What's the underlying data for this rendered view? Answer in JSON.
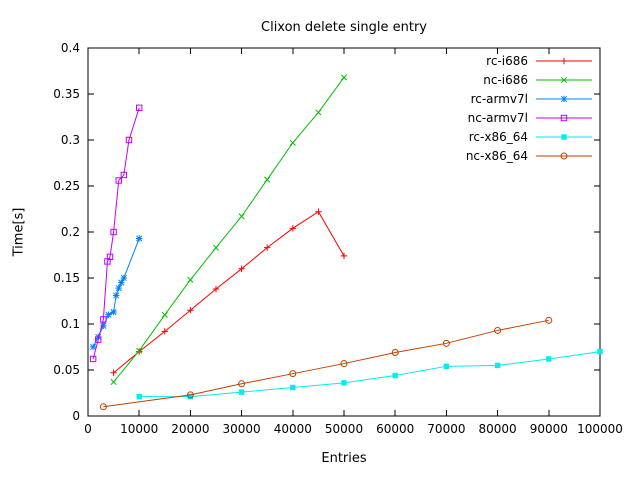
{
  "window": {
    "title": "Clixon delete single entry"
  },
  "chart_data": {
    "type": "line",
    "title": "Clixon delete single entry",
    "xlabel": "Entries",
    "ylabel": "Time[s]",
    "xlim": [
      0,
      100000
    ],
    "ylim": [
      0,
      0.4
    ],
    "xticks": [
      0,
      10000,
      20000,
      30000,
      40000,
      50000,
      60000,
      70000,
      80000,
      90000,
      100000
    ],
    "yticks": [
      0,
      0.05,
      0.1,
      0.15,
      0.2,
      0.25,
      0.3,
      0.35,
      0.4
    ],
    "grid": false,
    "legend_position": "top-right-inside",
    "axis_color": "#000000",
    "background_color": "#ffffff",
    "series": [
      {
        "name": "rc-i686",
        "color": "#ff0000",
        "marker": "plus",
        "x": [
          5000,
          10000,
          15000,
          20000,
          25000,
          30000,
          35000,
          40000,
          45000,
          50000
        ],
        "y": [
          0.047,
          0.07,
          0.092,
          0.115,
          0.138,
          0.16,
          0.183,
          0.204,
          0.222,
          0.174
        ]
      },
      {
        "name": "nc-i686",
        "color": "#00c000",
        "marker": "times",
        "x": [
          5000,
          10000,
          15000,
          20000,
          25000,
          30000,
          35000,
          40000,
          45000,
          50000
        ],
        "y": [
          0.037,
          0.071,
          0.11,
          0.148,
          0.183,
          0.217,
          0.257,
          0.297,
          0.33,
          0.368
        ]
      },
      {
        "name": "rc-armv7l",
        "color": "#0080ff",
        "marker": "asterisk",
        "x": [
          1000,
          2000,
          3000,
          4000,
          5000,
          5500,
          6000,
          6500,
          7000,
          10000
        ],
        "y": [
          0.075,
          0.086,
          0.098,
          0.11,
          0.113,
          0.131,
          0.139,
          0.145,
          0.15,
          0.193
        ]
      },
      {
        "name": "nc-armv7l",
        "color": "#c000ff",
        "marker": "square-open",
        "x": [
          1000,
          2000,
          3000,
          3800,
          4300,
          5000,
          6000,
          7000,
          8000,
          10000
        ],
        "y": [
          0.062,
          0.083,
          0.105,
          0.168,
          0.173,
          0.2,
          0.256,
          0.262,
          0.3,
          0.335
        ]
      },
      {
        "name": "rc-x86_64",
        "color": "#00eeee",
        "marker": "square-filled",
        "x": [
          10000,
          20000,
          30000,
          40000,
          50000,
          60000,
          70000,
          80000,
          90000,
          100000
        ],
        "y": [
          0.021,
          0.021,
          0.026,
          0.031,
          0.036,
          0.044,
          0.054,
          0.055,
          0.062,
          0.07
        ]
      },
      {
        "name": "nc-x86_64",
        "color": "#c04000",
        "marker": "circle-open",
        "x": [
          3000,
          20000,
          30000,
          40000,
          50000,
          60000,
          70000,
          80000,
          90000
        ],
        "y": [
          0.01,
          0.023,
          0.035,
          0.046,
          0.057,
          0.069,
          0.079,
          0.093,
          0.104
        ]
      }
    ]
  }
}
